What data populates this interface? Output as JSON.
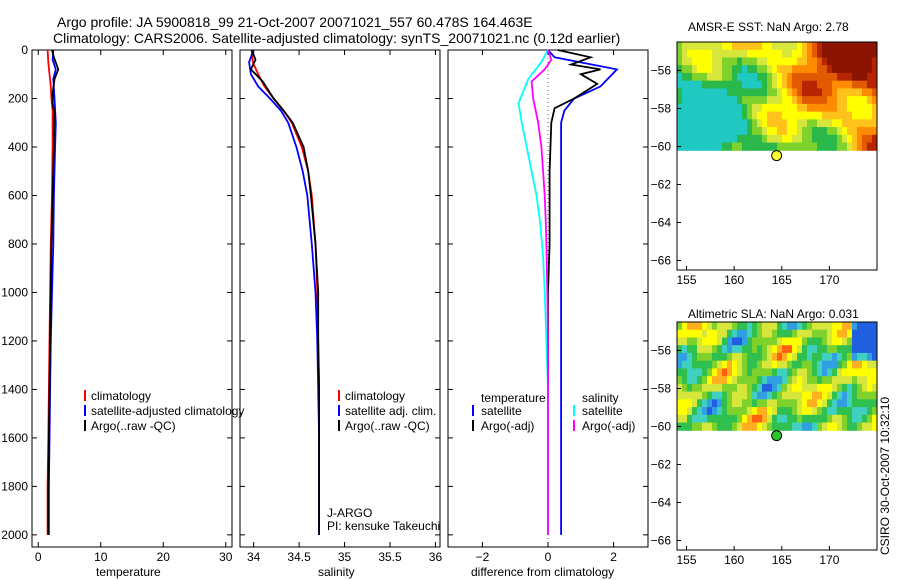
{
  "header": {
    "line1": "Argo profile: JA 5900818_99 21-Oct-2007 20071021_557 60.478S 164.463E",
    "line2": "Climatology: CARS2006. Satellite-adjusted climatology: synTS_20071021.nc (0.12d earlier)"
  },
  "colors": {
    "red": "#ff0000",
    "blue": "#0000ff",
    "black": "#000000",
    "cyan": "#00ffff",
    "magenta": "#ff00ff"
  },
  "chart_data": [
    {
      "id": "temperature",
      "type": "line",
      "xlabel": "temperature",
      "ylabel": "",
      "xlim": [
        -1,
        31
      ],
      "ylim": [
        0,
        2050
      ],
      "xticks": [
        0,
        10,
        20,
        30
      ],
      "yticks": [
        0,
        200,
        400,
        600,
        800,
        1000,
        1200,
        1400,
        1600,
        1800,
        2000
      ],
      "legend": [
        "climatology",
        "satellite-adjusted climatology",
        "Argo(..raw -QC)"
      ],
      "series": [
        {
          "name": "climatology",
          "color": "red",
          "points": [
            [
              1.5,
              0
            ],
            [
              1.6,
              50
            ],
            [
              1.8,
              100
            ],
            [
              2.0,
              150
            ],
            [
              2.1,
              200
            ],
            [
              2.3,
              250
            ],
            [
              2.3,
              300
            ],
            [
              2.3,
              400
            ],
            [
              2.2,
              600
            ],
            [
              2.0,
              800
            ],
            [
              1.9,
              1000
            ],
            [
              1.8,
              1200
            ],
            [
              1.7,
              1400
            ],
            [
              1.6,
              1600
            ],
            [
              1.5,
              1800
            ],
            [
              1.5,
              2000
            ]
          ]
        },
        {
          "name": "satellite-adjusted climatology",
          "color": "blue",
          "points": [
            [
              2.4,
              0
            ],
            [
              2.3,
              40
            ],
            [
              2.8,
              80
            ],
            [
              2.4,
              120
            ],
            [
              2.6,
              200
            ],
            [
              2.8,
              300
            ],
            [
              2.7,
              400
            ],
            [
              2.5,
              600
            ],
            [
              2.4,
              800
            ],
            [
              2.2,
              1000
            ],
            [
              2.0,
              1200
            ],
            [
              1.9,
              1400
            ],
            [
              1.8,
              1600
            ],
            [
              1.7,
              1800
            ],
            [
              1.7,
              2000
            ]
          ]
        },
        {
          "name": "Argo(..raw -QC)",
          "color": "black",
          "points": [
            [
              2.2,
              0
            ],
            [
              2.5,
              30
            ],
            [
              3.2,
              80
            ],
            [
              2.6,
              120
            ],
            [
              2.3,
              180
            ],
            [
              2.3,
              220
            ],
            [
              2.6,
              260
            ],
            [
              2.5,
              320
            ],
            [
              2.5,
              400
            ],
            [
              2.3,
              600
            ],
            [
              2.1,
              800
            ],
            [
              2.0,
              1000
            ],
            [
              1.9,
              1200
            ],
            [
              1.8,
              1400
            ],
            [
              1.7,
              1600
            ],
            [
              1.6,
              1800
            ],
            [
              1.6,
              2000
            ]
          ]
        }
      ]
    },
    {
      "id": "salinity",
      "type": "line",
      "xlabel": "salinity",
      "ylabel": "",
      "xlim": [
        33.85,
        36.05
      ],
      "ylim": [
        0,
        2050
      ],
      "xticks": [
        34,
        34.5,
        35,
        35.5,
        36
      ],
      "legend": [
        "climatology",
        "satellite adj. clim.",
        "Argo(..raw -QC)"
      ],
      "annotations": [
        "J-ARGO",
        "PI: kensuke Takeuchi"
      ],
      "series": [
        {
          "name": "climatology",
          "color": "red",
          "points": [
            [
              33.98,
              0
            ],
            [
              33.99,
              50
            ],
            [
              34.05,
              100
            ],
            [
              34.12,
              150
            ],
            [
              34.22,
              200
            ],
            [
              34.33,
              250
            ],
            [
              34.42,
              300
            ],
            [
              34.53,
              400
            ],
            [
              34.6,
              500
            ],
            [
              34.64,
              600
            ],
            [
              34.68,
              800
            ],
            [
              34.7,
              1000
            ],
            [
              34.71,
              1200
            ],
            [
              34.72,
              1400
            ],
            [
              34.72,
              1600
            ],
            [
              34.72,
              1800
            ],
            [
              34.72,
              2000
            ]
          ]
        },
        {
          "name": "satellite adj. clim.",
          "color": "blue",
          "points": [
            [
              34.0,
              0
            ],
            [
              33.95,
              50
            ],
            [
              33.97,
              100
            ],
            [
              34.05,
              150
            ],
            [
              34.18,
              200
            ],
            [
              34.3,
              250
            ],
            [
              34.38,
              300
            ],
            [
              34.47,
              400
            ],
            [
              34.54,
              500
            ],
            [
              34.59,
              600
            ],
            [
              34.64,
              800
            ],
            [
              34.68,
              1000
            ],
            [
              34.7,
              1200
            ],
            [
              34.71,
              1400
            ],
            [
              34.72,
              1600
            ],
            [
              34.72,
              1800
            ],
            [
              34.72,
              2000
            ]
          ]
        },
        {
          "name": "Argo(..raw -QC)",
          "color": "black",
          "points": [
            [
              33.98,
              0
            ],
            [
              34.02,
              40
            ],
            [
              33.97,
              80
            ],
            [
              34.1,
              130
            ],
            [
              34.22,
              200
            ],
            [
              34.35,
              260
            ],
            [
              34.43,
              300
            ],
            [
              34.55,
              400
            ],
            [
              34.6,
              500
            ],
            [
              34.63,
              600
            ],
            [
              34.68,
              800
            ],
            [
              34.71,
              1000
            ],
            [
              34.71,
              1200
            ],
            [
              34.72,
              1400
            ],
            [
              34.72,
              1600
            ],
            [
              34.72,
              1800
            ],
            [
              34.72,
              2000
            ]
          ]
        }
      ]
    },
    {
      "id": "difference",
      "type": "line",
      "xlabel": "difference from climatology",
      "ylabel": "",
      "xlim": [
        -3.05,
        3.05
      ],
      "ylim": [
        0,
        2050
      ],
      "xticks": [
        -2,
        0,
        2
      ],
      "legend_groups": [
        {
          "heading": "temperature",
          "entries": [
            "satellite",
            "Argo(-adj)"
          ]
        },
        {
          "heading": "salinity",
          "entries": [
            "satellite",
            "Argo(-adj)"
          ]
        }
      ],
      "series": [
        {
          "name": "temperature satellite",
          "color": "blue",
          "points": [
            [
              0.0,
              0
            ],
            [
              0.2,
              30
            ],
            [
              2.1,
              80
            ],
            [
              1.6,
              150
            ],
            [
              0.8,
              200
            ],
            [
              0.5,
              250
            ],
            [
              0.4,
              300
            ],
            [
              0.4,
              500
            ],
            [
              0.4,
              800
            ],
            [
              0.4,
              1100
            ],
            [
              0.4,
              1400
            ],
            [
              0.4,
              1700
            ],
            [
              0.4,
              2000
            ]
          ]
        },
        {
          "name": "temperature Argo(-adj)",
          "color": "black",
          "points": [
            [
              0.3,
              0
            ],
            [
              1.3,
              30
            ],
            [
              0.7,
              60
            ],
            [
              1.6,
              80
            ],
            [
              1.0,
              100
            ],
            [
              1.5,
              140
            ],
            [
              0.8,
              200
            ],
            [
              0.2,
              240
            ],
            [
              0.1,
              300
            ],
            [
              0.05,
              500
            ],
            [
              0.05,
              800
            ],
            [
              0.0,
              1000
            ],
            [
              0.0,
              1300
            ],
            [
              0.0,
              1600
            ],
            [
              0.0,
              1800
            ],
            [
              0.0,
              2000
            ]
          ]
        },
        {
          "name": "salinity satellite",
          "color": "cyan",
          "points": [
            [
              0.0,
              0
            ],
            [
              -0.2,
              50
            ],
            [
              -0.6,
              120
            ],
            [
              -0.9,
              220
            ],
            [
              -0.8,
              300
            ],
            [
              -0.65,
              400
            ],
            [
              -0.5,
              500
            ],
            [
              -0.35,
              600
            ],
            [
              -0.25,
              700
            ],
            [
              -0.15,
              850
            ],
            [
              -0.1,
              1000
            ],
            [
              -0.05,
              1200
            ],
            [
              0.0,
              1400
            ],
            [
              0.0,
              1700
            ],
            [
              0.0,
              2000
            ]
          ]
        },
        {
          "name": "salinity Argo(-adj)",
          "color": "magenta",
          "points": [
            [
              0.0,
              0
            ],
            [
              0.1,
              40
            ],
            [
              -0.1,
              80
            ],
            [
              -0.5,
              130
            ],
            [
              -0.45,
              200
            ],
            [
              -0.3,
              300
            ],
            [
              -0.2,
              400
            ],
            [
              -0.15,
              500
            ],
            [
              -0.1,
              600
            ],
            [
              -0.07,
              700
            ],
            [
              -0.05,
              800
            ],
            [
              -0.02,
              1000
            ],
            [
              0.0,
              1200
            ],
            [
              0.0,
              1500
            ],
            [
              0.0,
              2000
            ]
          ]
        }
      ]
    },
    {
      "id": "sst-map",
      "type": "heatmap",
      "title": "AMSR-E SST: NaN Argo: 2.78",
      "xlim": [
        154,
        175
      ],
      "ylim": [
        -66.5,
        -54.5
      ],
      "xticks": [
        155,
        160,
        165,
        170
      ],
      "yticks": [
        -56,
        -58,
        -60,
        -62,
        -64,
        -66
      ],
      "data_extent": [
        [
          154,
          175
        ],
        [
          -60.2,
          -54.5
        ]
      ],
      "marker": {
        "lon": 164.463,
        "lat": -60.478,
        "color": "#ffff33"
      },
      "palette": [
        "#1fc8c0",
        "#2ab84a",
        "#7fd12c",
        "#d7e63a",
        "#ffff00",
        "#ffc21a",
        "#ff8c00",
        "#e25a00",
        "#b82400",
        "#8b1500"
      ]
    },
    {
      "id": "sla-map",
      "type": "heatmap",
      "title": "Altimetric SLA: NaN Argo: 0.031",
      "xlim": [
        154,
        175
      ],
      "ylim": [
        -66.5,
        -54.5
      ],
      "xticks": [
        155,
        160,
        165,
        170
      ],
      "yticks": [
        -56,
        -58,
        -60,
        -62,
        -64,
        -66
      ],
      "data_extent": [
        [
          154,
          175
        ],
        [
          -60.2,
          -54.5
        ]
      ],
      "marker": {
        "lon": 164.463,
        "lat": -60.478,
        "color": "#2cc42c"
      },
      "palette": [
        "#1f5fe0",
        "#30a0e0",
        "#40d0c0",
        "#30c050",
        "#7fd12c",
        "#d7e63a",
        "#ffff00",
        "#ffb020",
        "#ff6010",
        "#c01010"
      ]
    }
  ],
  "footer": {
    "stamp": "CSIRO 30-Oct-2007 10:32:10"
  }
}
